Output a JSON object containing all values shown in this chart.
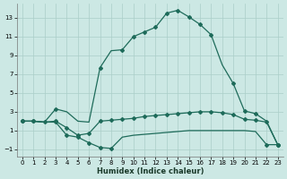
{
  "xlabel": "Humidex (Indice chaleur)",
  "bg_color": "#cce8e4",
  "grid_color": "#aacec8",
  "line_color": "#1e6b5a",
  "xlim": [
    -0.5,
    23.5
  ],
  "ylim": [
    -1.8,
    14.5
  ],
  "x_ticks": [
    0,
    1,
    2,
    3,
    4,
    5,
    6,
    7,
    8,
    9,
    10,
    11,
    12,
    13,
    14,
    15,
    16,
    17,
    18,
    19,
    20,
    21,
    22,
    23
  ],
  "y_ticks": [
    -1,
    1,
    3,
    5,
    7,
    9,
    11,
    13
  ],
  "curve_peak_x": [
    0,
    1,
    2,
    3,
    4,
    5,
    6,
    7,
    8,
    9,
    10,
    11,
    12,
    13,
    14,
    15,
    16,
    17,
    18,
    19,
    20,
    21,
    22,
    23
  ],
  "curve_peak_y": [
    2.0,
    2.0,
    1.9,
    3.3,
    3.0,
    2.0,
    1.9,
    7.7,
    9.5,
    9.6,
    11.0,
    11.5,
    12.0,
    13.5,
    13.8,
    13.1,
    12.3,
    11.2,
    8.0,
    6.0,
    3.1,
    2.8,
    2.0,
    -0.5
  ],
  "curve_mid_x": [
    0,
    1,
    2,
    3,
    4,
    5,
    6,
    7,
    8,
    9,
    10,
    11,
    12,
    13,
    14,
    15,
    16,
    17,
    18,
    19,
    20,
    21,
    22,
    23
  ],
  "curve_mid_y": [
    2.0,
    2.0,
    1.9,
    2.0,
    1.3,
    0.5,
    0.7,
    2.0,
    2.1,
    2.2,
    2.3,
    2.5,
    2.6,
    2.7,
    2.8,
    2.9,
    3.0,
    3.0,
    2.9,
    2.7,
    2.2,
    2.1,
    1.9,
    -0.5
  ],
  "curve_flat_x": [
    0,
    1,
    2,
    3,
    4,
    5,
    6,
    7,
    8,
    9,
    10,
    11,
    12,
    13,
    14,
    15,
    16,
    17,
    18,
    19,
    20,
    21,
    22,
    23
  ],
  "curve_flat_y": [
    2.0,
    2.0,
    1.9,
    1.9,
    0.5,
    0.3,
    -0.3,
    -0.8,
    -0.9,
    0.3,
    0.5,
    0.6,
    0.7,
    0.8,
    0.9,
    1.0,
    1.0,
    1.0,
    1.0,
    1.0,
    1.0,
    0.9,
    -0.5,
    -0.5
  ],
  "markers_peak_x": [
    0,
    1,
    3,
    7,
    9,
    10,
    11,
    12,
    13,
    14,
    15,
    16,
    17,
    19,
    20,
    21,
    23
  ],
  "markers_peak_y": [
    2.0,
    2.0,
    3.3,
    7.7,
    9.6,
    11.0,
    11.5,
    12.0,
    13.5,
    13.8,
    13.1,
    12.3,
    11.2,
    6.0,
    3.1,
    2.8,
    -0.5
  ],
  "markers_mid_x": [
    0,
    1,
    3,
    4,
    5,
    6,
    7,
    8,
    9,
    10,
    11,
    12,
    13,
    14,
    15,
    16,
    17,
    18,
    19,
    20,
    21,
    22,
    23
  ],
  "markers_mid_y": [
    2.0,
    2.0,
    2.0,
    1.3,
    0.5,
    0.7,
    2.0,
    2.1,
    2.2,
    2.3,
    2.5,
    2.6,
    2.7,
    2.8,
    2.9,
    3.0,
    3.0,
    2.9,
    2.7,
    2.2,
    2.1,
    1.9,
    -0.5
  ],
  "markers_flat_x": [
    0,
    2,
    3,
    4,
    5,
    6,
    7,
    8,
    22,
    23
  ],
  "markers_flat_y": [
    2.0,
    1.9,
    1.9,
    0.5,
    0.3,
    -0.3,
    -0.8,
    -0.9,
    -0.5,
    -0.5
  ]
}
